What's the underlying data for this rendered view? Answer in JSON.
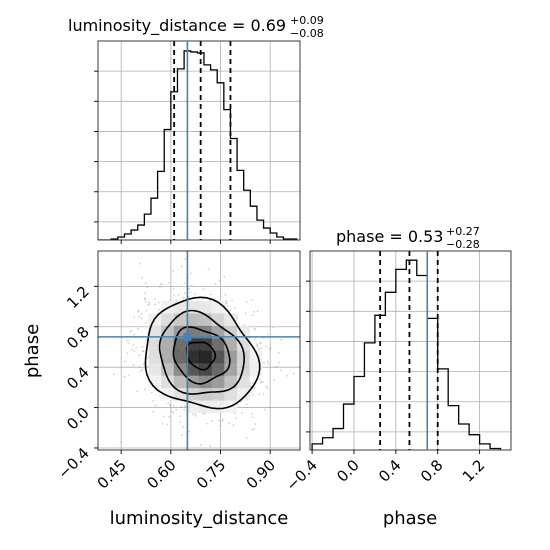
{
  "chart_data": {
    "type": "corner",
    "parameters": [
      "luminosity_distance",
      "phase"
    ],
    "truth": {
      "luminosity_distance": 0.65,
      "phase": 0.7
    },
    "panels": {
      "luminosity_distance_hist": {
        "type": "histogram",
        "title_main": "luminosity_distance = 0.69",
        "title_sup": "+0.09",
        "title_sub": "−0.08",
        "xlim": [
          0.38,
          0.99
        ],
        "quantiles": [
          0.61,
          0.69,
          0.78
        ],
        "bin_edges": [
          0.38,
          0.4,
          0.42,
          0.44,
          0.46,
          0.48,
          0.5,
          0.52,
          0.54,
          0.56,
          0.58,
          0.6,
          0.62,
          0.64,
          0.66,
          0.68,
          0.7,
          0.72,
          0.74,
          0.76,
          0.78,
          0.8,
          0.82,
          0.84,
          0.86,
          0.88,
          0.9,
          0.92,
          0.94,
          0.96,
          0.98
        ],
        "counts": [
          0,
          0,
          1,
          3,
          6,
          10,
          15,
          26,
          42,
          69,
          111,
          149,
          172,
          190,
          189,
          188,
          176,
          171,
          158,
          131,
          102,
          70,
          50,
          34,
          20,
          12,
          7,
          3,
          1,
          1
        ],
        "ymax": 200
      },
      "phase_hist": {
        "type": "histogram",
        "title_main": "phase = 0.53",
        "title_sup": "+0.27",
        "title_sub": "−0.28",
        "xlim": [
          -0.42,
          1.5
        ],
        "quantiles": [
          0.25,
          0.53,
          0.8
        ],
        "bin_edges": [
          -0.4,
          -0.3,
          -0.2,
          -0.1,
          0.0,
          0.1,
          0.2,
          0.3,
          0.4,
          0.5,
          0.6,
          0.7,
          0.8,
          0.9,
          1.0,
          1.1,
          1.2,
          1.3,
          1.4
        ],
        "counts": [
          4,
          8,
          14,
          30,
          48,
          70,
          88,
          103,
          118,
          124,
          114,
          86,
          53,
          29,
          17,
          10,
          4,
          1
        ],
        "ymax": 130
      },
      "joint": {
        "type": "2d-density",
        "xlim": [
          0.38,
          0.99
        ],
        "ylim": [
          -0.42,
          1.55
        ],
        "center": [
          0.69,
          0.52
        ],
        "sigma": [
          0.085,
          0.27
        ],
        "rho": -0.15
      }
    },
    "x_ticks_lum": [
      "0.45",
      "0.60",
      "0.75",
      "0.90"
    ],
    "x_tick_values_lum": [
      0.45,
      0.6,
      0.75,
      0.9
    ],
    "x_ticks_phase": [
      "−0.4",
      "0.0",
      "0.4",
      "0.8",
      "1.2"
    ],
    "x_tick_values_phase": [
      -0.4,
      0.0,
      0.4,
      0.8,
      1.2
    ],
    "y_ticks_phase": [
      "−0.4",
      "0.0",
      "0.4",
      "0.8",
      "1.2"
    ],
    "y_tick_values_phase": [
      -0.4,
      0.0,
      0.4,
      0.8,
      1.2
    ],
    "xlabel_left": "luminosity_distance",
    "xlabel_right": "phase",
    "ylabel": "phase",
    "colors": {
      "truth": "#4682b4",
      "hist": "#000000",
      "grid": "#b0b0b0"
    }
  }
}
